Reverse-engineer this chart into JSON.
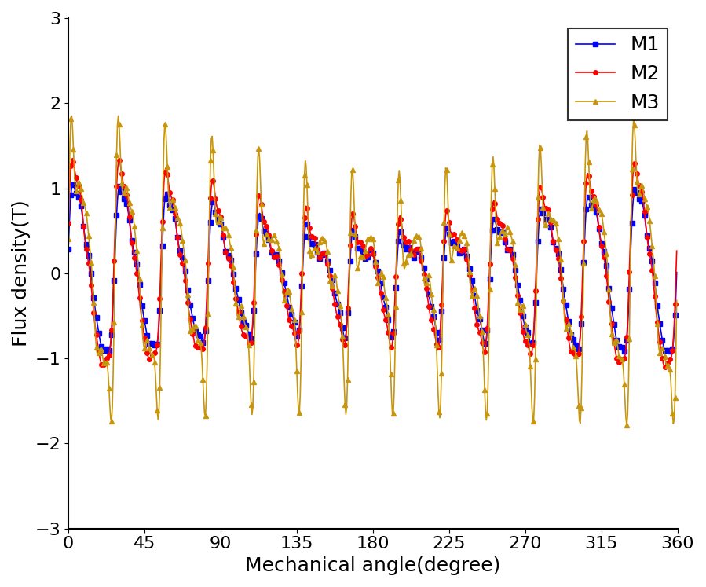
{
  "xlabel": "Mechanical angle(degree)",
  "ylabel": "Flux density(T)",
  "xlim": [
    0,
    360
  ],
  "ylim": [
    -3,
    3
  ],
  "xticks": [
    0,
    45,
    90,
    135,
    180,
    225,
    270,
    315,
    360
  ],
  "yticks": [
    -3,
    -2,
    -1,
    0,
    1,
    2,
    3
  ],
  "legend_labels": [
    "M1",
    "M2",
    "M3"
  ],
  "colors": [
    "#0000FF",
    "#FF0000",
    "#C8960C"
  ],
  "markers": [
    "s",
    "o",
    "^"
  ],
  "marker_sizes": [
    4,
    4,
    5
  ],
  "linewidths": [
    1.2,
    1.2,
    1.2
  ],
  "legend_fontsize": 18,
  "axis_label_fontsize": 18,
  "tick_fontsize": 16,
  "legend_loc": "upper right",
  "figsize": [
    8.99,
    7.47
  ],
  "dpi": 100,
  "markevery": 3,
  "N": 720,
  "num_poles": 13,
  "base_amp_m1": 0.95,
  "base_amp_m2": 1.1,
  "base_amp_m3": 1.05,
  "spike_amp_m3": 0.85,
  "spike_freq_m3": 13
}
